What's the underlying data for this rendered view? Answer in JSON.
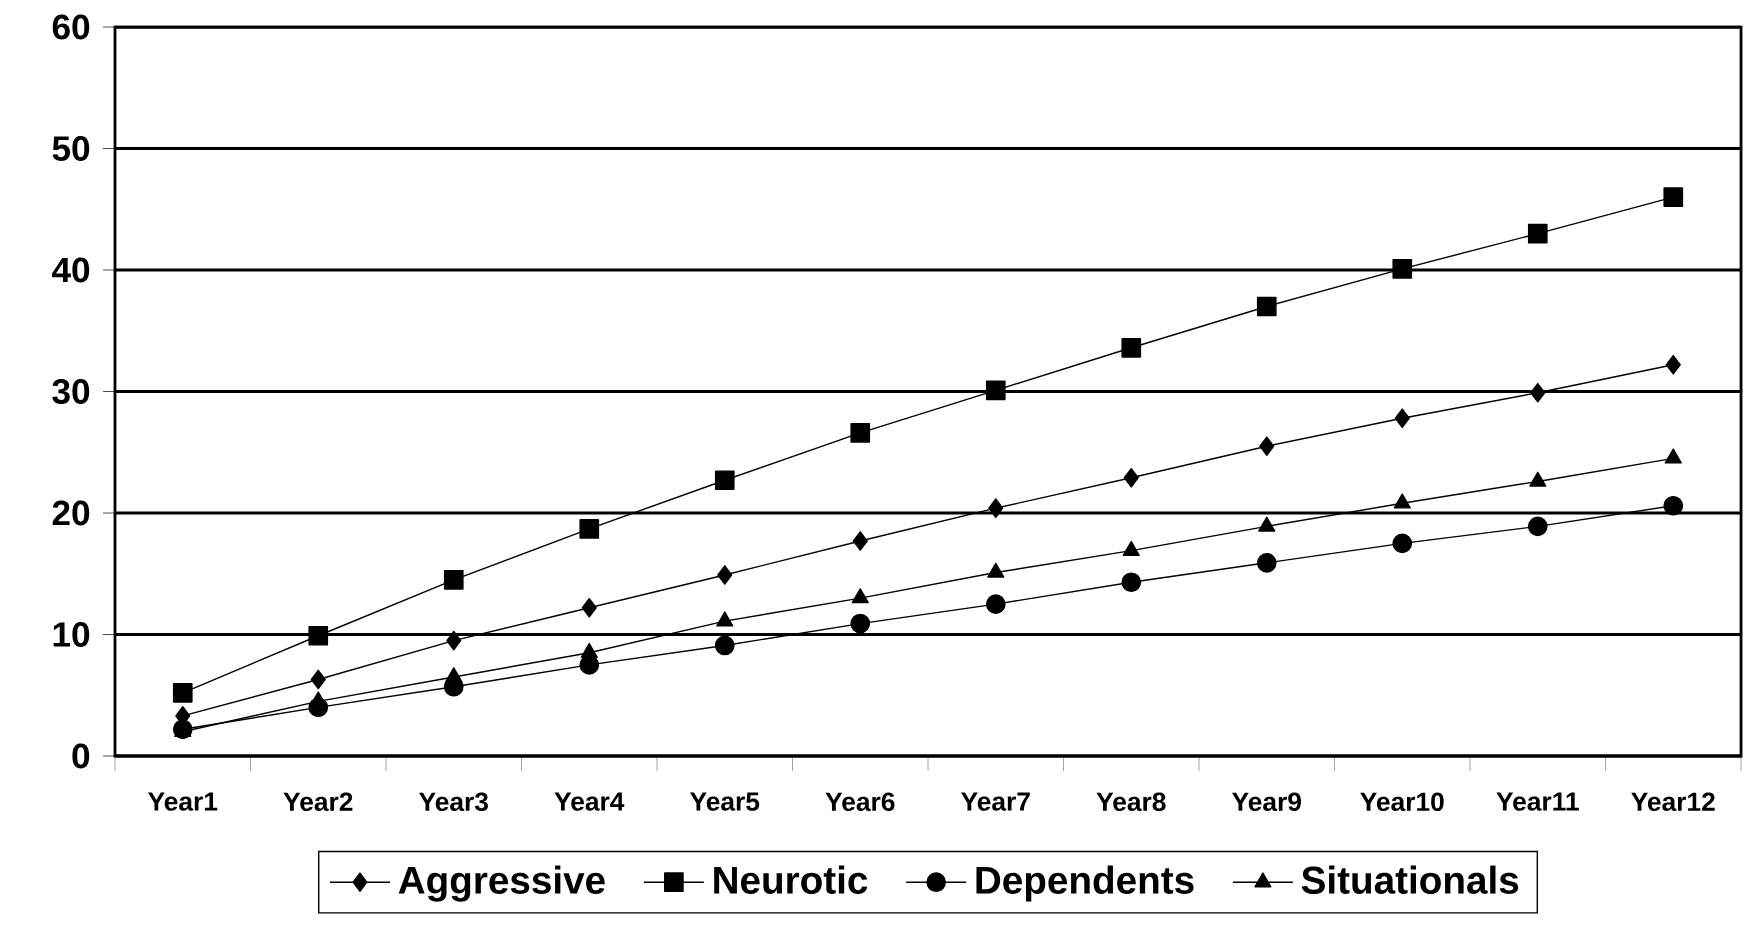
{
  "chart_data": {
    "type": "line",
    "categories": [
      "Year1",
      "Year2",
      "Year3",
      "Year4",
      "Year5",
      "Year6",
      "Year7",
      "Year8",
      "Year9",
      "Year10",
      "Year11",
      "Year12"
    ],
    "series": [
      {
        "name": "Aggressive",
        "color": "#000000",
        "marker": "diamond",
        "values": [
          3.3,
          6.3,
          9.5,
          12.2,
          14.9,
          17.7,
          20.4,
          22.9,
          25.5,
          27.8,
          29.9,
          32.2
        ]
      },
      {
        "name": "Neurotic",
        "color": "#000000",
        "marker": "square",
        "values": [
          5.2,
          9.9,
          14.5,
          18.7,
          22.7,
          26.6,
          30.1,
          33.6,
          37.0,
          40.1,
          43.0,
          46.0
        ]
      },
      {
        "name": "Dependents",
        "color": "#000000",
        "marker": "circle",
        "values": [
          2.2,
          4.0,
          5.7,
          7.5,
          9.1,
          10.9,
          12.5,
          14.3,
          15.9,
          17.5,
          18.9,
          20.6
        ]
      },
      {
        "name": "Situationals",
        "color": "#000000",
        "marker": "triangle",
        "values": [
          2.0,
          4.5,
          6.5,
          8.5,
          11.1,
          13.0,
          15.1,
          16.9,
          18.9,
          20.8,
          22.6,
          24.5
        ]
      }
    ],
    "ylim": [
      0,
      60
    ],
    "yticks": [
      0,
      10,
      20,
      30,
      40,
      50,
      60
    ],
    "grid": "y",
    "legend": "bottom",
    "line_style": "solid"
  }
}
